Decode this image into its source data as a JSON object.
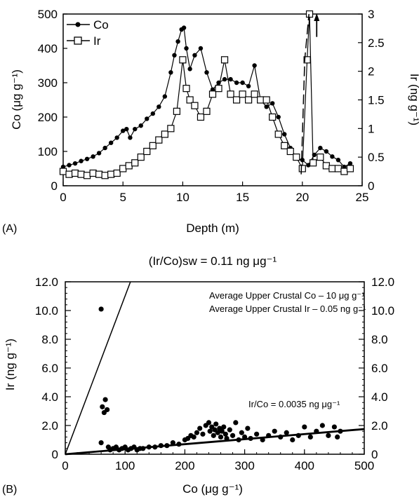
{
  "chart_data": [
    {
      "panel": "(A)",
      "type": "line",
      "title": "",
      "xlabel": "Depth (m)",
      "ylabel_left": "Co (μg g⁻¹)",
      "ylabel_right": "Ir (ng g⁻¹)",
      "xlim": [
        0,
        25
      ],
      "ylim_left": [
        0,
        500
      ],
      "ylim_right": [
        0,
        3
      ],
      "x_ticks": [
        "0",
        "5",
        "10",
        "15",
        "20",
        "25"
      ],
      "y_ticks_left": [
        "0",
        "100",
        "200",
        "300",
        "400",
        "500"
      ],
      "y_ticks_right": [
        "0",
        "0.5",
        "1",
        "1.5",
        "2",
        "2.5",
        "3"
      ],
      "legend_position": "top-left",
      "series": [
        {
          "name": "Co",
          "axis": "left",
          "marker": "filled-circle",
          "x": [
            0,
            0.5,
            1,
            1.5,
            2,
            2.5,
            3,
            3.5,
            4,
            4.5,
            5,
            5.3,
            5.6,
            6,
            6.5,
            7,
            7.5,
            8,
            8.5,
            9,
            9.3,
            9.6,
            9.9,
            10.1,
            10.3,
            10.6,
            11,
            11.5,
            12,
            12.5,
            13,
            13.5,
            14,
            14.5,
            15,
            15.5,
            16,
            16.5,
            17,
            17.5,
            18,
            18.5,
            19,
            19.5,
            20,
            20.5,
            21,
            21.5,
            22,
            22.5,
            23,
            23.5,
            24
          ],
          "y": [
            55,
            60,
            65,
            72,
            78,
            85,
            95,
            110,
            125,
            140,
            160,
            165,
            140,
            165,
            175,
            195,
            210,
            230,
            260,
            330,
            380,
            420,
            455,
            460,
            400,
            340,
            380,
            400,
            330,
            280,
            300,
            310,
            310,
            300,
            300,
            290,
            350,
            250,
            230,
            240,
            200,
            150,
            110,
            80,
            75,
            60,
            90,
            110,
            100,
            85,
            75,
            55,
            65
          ]
        },
        {
          "name": "Ir",
          "axis": "right",
          "marker": "open-square",
          "x": [
            0,
            0.5,
            1,
            1.5,
            2,
            2.5,
            3,
            3.5,
            4,
            4.5,
            5,
            5.5,
            6,
            6.5,
            7,
            7.5,
            8,
            8.5,
            9,
            9.5,
            10,
            10.3,
            10.6,
            11,
            11.5,
            12,
            12.5,
            13,
            13.5,
            14,
            14.5,
            15,
            15.5,
            16,
            16.5,
            17,
            17.5,
            18,
            18.5,
            19,
            19.5,
            20,
            20.4,
            20.6,
            20.9,
            21.5,
            22,
            22.5,
            23,
            23.5,
            24
          ],
          "y": [
            0.25,
            0.2,
            0.22,
            0.2,
            0.18,
            0.22,
            0.2,
            0.18,
            0.2,
            0.22,
            0.3,
            0.35,
            0.4,
            0.5,
            0.6,
            0.7,
            0.8,
            0.9,
            1.0,
            1.3,
            2.2,
            1.7,
            1.5,
            1.4,
            1.2,
            1.3,
            1.6,
            1.7,
            2.2,
            1.6,
            1.5,
            1.6,
            1.5,
            1.6,
            1.5,
            1.5,
            1.2,
            0.9,
            0.7,
            0.6,
            0.5,
            0.3,
            2.2,
            3.0,
            0.4,
            0.5,
            0.35,
            0.3,
            0.3,
            0.25,
            0.3
          ]
        }
      ],
      "annotations": [
        {
          "type": "dashed-line",
          "points": [
            [
              19.9,
              0.2
            ],
            [
              20.2,
              2.2
            ],
            [
              20.55,
              3.0
            ]
          ]
        },
        {
          "type": "arrow-up",
          "x": 21.2,
          "y_from": 2.6,
          "y_to": 3.0
        }
      ]
    },
    {
      "panel": "(B)",
      "type": "scatter",
      "title": "(Ir/Co)sw = 0.11 ng μg⁻¹",
      "xlabel": "Co (μg g⁻¹)",
      "ylabel": "Ir (ng g⁻¹)",
      "xlim": [
        0,
        500
      ],
      "ylim": [
        0,
        12
      ],
      "x_ticks": [
        "0",
        "100",
        "200",
        "300",
        "400",
        "500"
      ],
      "y_ticks": [
        "0",
        "2.0",
        "4.0",
        "6.0",
        "8.0",
        "10.0",
        "12.0"
      ],
      "annotations": [
        "Average Upper Crustal Co – 10 μg g⁻¹",
        "Average Upper Crustal Ir – 0.05 ng g⁻¹",
        "Ir/Co = 0.0035  ng μg⁻¹"
      ],
      "lines": [
        {
          "x": [
            0,
            109
          ],
          "y": [
            0,
            12
          ]
        },
        {
          "x": [
            0,
            500
          ],
          "y": [
            0,
            1.75
          ]
        }
      ],
      "series": [
        {
          "marker": "filled-circle",
          "x": [
            60,
            62,
            65,
            67,
            70,
            72,
            75,
            60,
            80,
            85,
            90,
            95,
            100,
            105,
            110,
            115,
            120,
            125,
            130,
            140,
            150,
            160,
            170,
            180,
            190,
            200,
            205,
            210,
            215,
            220,
            225,
            230,
            235,
            240,
            242,
            245,
            248,
            250,
            252,
            255,
            258,
            260,
            262,
            265,
            268,
            270,
            275,
            280,
            285,
            290,
            295,
            300,
            305,
            310,
            320,
            330,
            340,
            350,
            360,
            370,
            380,
            390,
            400,
            410,
            420,
            430,
            440,
            450,
            455,
            460
          ],
          "y": [
            10.1,
            3.3,
            2.9,
            3.8,
            3.1,
            0.5,
            0.3,
            0.8,
            0.4,
            0.5,
            0.3,
            0.4,
            0.5,
            0.3,
            0.4,
            0.5,
            0.3,
            0.4,
            0.4,
            0.5,
            0.5,
            0.6,
            0.6,
            0.8,
            0.7,
            1.0,
            1.1,
            1.3,
            1.2,
            1.5,
            1.8,
            1.4,
            2.0,
            2.2,
            1.6,
            1.9,
            1.3,
            1.7,
            2.1,
            1.5,
            1.8,
            1.2,
            1.6,
            1.9,
            1.4,
            1.1,
            1.7,
            1.3,
            2.2,
            1.0,
            1.5,
            1.2,
            1.8,
            1.1,
            1.4,
            1.0,
            1.3,
            1.6,
            1.2,
            1.5,
            1.0,
            1.3,
            1.9,
            1.2,
            1.6,
            2.0,
            1.3,
            1.9,
            1.2,
            1.6
          ]
        }
      ]
    }
  ]
}
